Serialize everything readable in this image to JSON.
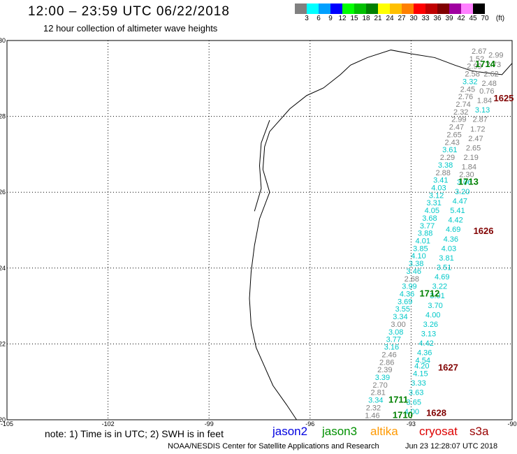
{
  "header": {
    "title": "12:00 – 23:59 UTC 06/22/2018",
    "subtitle": "12 hour collection of altimeter wave heights"
  },
  "color_scale": {
    "unit_label": "(ft)",
    "labels": [
      "3",
      "6",
      "9",
      "12",
      "15",
      "18",
      "21",
      "24",
      "27",
      "30",
      "33",
      "36",
      "39",
      "42",
      "45",
      "70"
    ],
    "colors": [
      "#808080",
      "#00ffff",
      "#00a0ff",
      "#0000ff",
      "#00ff00",
      "#00c000",
      "#008000",
      "#ffff00",
      "#ffc000",
      "#ff8000",
      "#ff0000",
      "#c00000",
      "#800000",
      "#a000a0",
      "#ff80ff",
      "#000000"
    ]
  },
  "map": {
    "lon_ticks": [
      "-105",
      "-102",
      "-99",
      "-96",
      "-93",
      "-90"
    ],
    "lat_ticks": [
      "30",
      "28",
      "26",
      "24",
      "22",
      "20"
    ],
    "lon_range": [
      -105,
      -90
    ],
    "lat_range": [
      20,
      30
    ],
    "track_colors": {
      "low": "#808080",
      "mid": "#00c8c8",
      "pass_green": "#008000",
      "pass_red": "#800000"
    },
    "tracks": [
      {
        "points": [
          {
            "lon": -94.15,
            "lat": 20.05,
            "v": "1.46",
            "c": "low"
          },
          {
            "lon": -94.12,
            "lat": 20.25,
            "v": "2.32",
            "c": "low"
          },
          {
            "lon": -94.05,
            "lat": 20.45,
            "v": "3.34",
            "c": "mid"
          },
          {
            "lon": -93.98,
            "lat": 20.65,
            "v": "2.81",
            "c": "low"
          },
          {
            "lon": -93.92,
            "lat": 20.85,
            "v": "2.70",
            "c": "low"
          },
          {
            "lon": -93.85,
            "lat": 21.05,
            "v": "3.39",
            "c": "mid"
          },
          {
            "lon": -93.78,
            "lat": 21.25,
            "v": "2.39",
            "c": "low"
          },
          {
            "lon": -93.72,
            "lat": 21.45,
            "v": "2.86",
            "c": "low"
          },
          {
            "lon": -93.65,
            "lat": 21.65,
            "v": "2.46",
            "c": "low"
          },
          {
            "lon": -93.58,
            "lat": 21.85,
            "v": "3.16",
            "c": "mid"
          },
          {
            "lon": -93.52,
            "lat": 22.05,
            "v": "3.77",
            "c": "mid"
          },
          {
            "lon": -93.45,
            "lat": 22.25,
            "v": "3.08",
            "c": "mid"
          },
          {
            "lon": -93.38,
            "lat": 22.45,
            "v": "3.00",
            "c": "low"
          },
          {
            "lon": -93.32,
            "lat": 22.65,
            "v": "3.34",
            "c": "mid"
          },
          {
            "lon": -93.25,
            "lat": 22.85,
            "v": "3.55",
            "c": "mid"
          },
          {
            "lon": -93.18,
            "lat": 23.05,
            "v": "3.69",
            "c": "mid"
          },
          {
            "lon": -93.12,
            "lat": 23.25,
            "v": "4.36",
            "c": "mid"
          },
          {
            "lon": -93.05,
            "lat": 23.45,
            "v": "3.99",
            "c": "mid"
          },
          {
            "lon": -92.98,
            "lat": 23.65,
            "v": "2.68",
            "c": "low"
          },
          {
            "lon": -92.92,
            "lat": 23.85,
            "v": "3.46",
            "c": "mid"
          },
          {
            "lon": -92.85,
            "lat": 24.05,
            "v": "3.38",
            "c": "mid"
          },
          {
            "lon": -92.78,
            "lat": 24.25,
            "v": "4.10",
            "c": "mid"
          },
          {
            "lon": -92.72,
            "lat": 24.45,
            "v": "3.85",
            "c": "mid"
          },
          {
            "lon": -92.65,
            "lat": 24.65,
            "v": "4.01",
            "c": "mid"
          },
          {
            "lon": -92.58,
            "lat": 24.85,
            "v": "3.88",
            "c": "mid"
          },
          {
            "lon": -92.52,
            "lat": 25.05,
            "v": "3.77",
            "c": "mid"
          },
          {
            "lon": -92.45,
            "lat": 25.25,
            "v": "3.68",
            "c": "mid"
          },
          {
            "lon": -92.38,
            "lat": 25.45,
            "v": "4.05",
            "c": "mid"
          },
          {
            "lon": -92.32,
            "lat": 25.65,
            "v": "3.31",
            "c": "mid"
          },
          {
            "lon": -92.25,
            "lat": 25.85,
            "v": "3.12",
            "c": "mid"
          },
          {
            "lon": -92.18,
            "lat": 26.05,
            "v": "4.03",
            "c": "mid"
          },
          {
            "lon": -92.12,
            "lat": 26.25,
            "v": "3.41",
            "c": "mid"
          },
          {
            "lon": -92.05,
            "lat": 26.45,
            "v": "2.88",
            "c": "low"
          },
          {
            "lon": -91.98,
            "lat": 26.65,
            "v": "3.38",
            "c": "mid"
          },
          {
            "lon": -91.92,
            "lat": 26.85,
            "v": "2.29",
            "c": "low"
          },
          {
            "lon": -91.85,
            "lat": 27.05,
            "v": "3.61",
            "c": "mid"
          },
          {
            "lon": -91.78,
            "lat": 27.25,
            "v": "2.43",
            "c": "low"
          },
          {
            "lon": -91.72,
            "lat": 27.45,
            "v": "2.65",
            "c": "low"
          },
          {
            "lon": -91.65,
            "lat": 27.65,
            "v": "2.47",
            "c": "low"
          },
          {
            "lon": -91.58,
            "lat": 27.85,
            "v": "2.99",
            "c": "low"
          },
          {
            "lon": -91.52,
            "lat": 28.05,
            "v": "2.32",
            "c": "low"
          },
          {
            "lon": -91.45,
            "lat": 28.25,
            "v": "2.74",
            "c": "low"
          },
          {
            "lon": -91.38,
            "lat": 28.45,
            "v": "2.76",
            "c": "low"
          },
          {
            "lon": -91.32,
            "lat": 28.65,
            "v": "2.45",
            "c": "low"
          },
          {
            "lon": -91.25,
            "lat": 28.85,
            "v": "3.32",
            "c": "mid"
          },
          {
            "lon": -91.18,
            "lat": 29.05,
            "v": "2.58",
            "c": "low"
          },
          {
            "lon": -91.12,
            "lat": 29.25,
            "v": "2.99",
            "c": "low"
          },
          {
            "lon": -91.05,
            "lat": 29.45,
            "v": "1.52",
            "c": "low"
          },
          {
            "lon": -90.98,
            "lat": 29.65,
            "v": "2.67",
            "c": "low"
          }
        ]
      },
      {
        "points": [
          {
            "lon": -92.98,
            "lat": 20.15,
            "v": "4.00",
            "c": "mid"
          },
          {
            "lon": -92.92,
            "lat": 20.4,
            "v": "3.65",
            "c": "mid"
          },
          {
            "lon": -92.85,
            "lat": 20.65,
            "v": "3.63",
            "c": "mid"
          },
          {
            "lon": -92.78,
            "lat": 20.9,
            "v": "3.33",
            "c": "mid"
          },
          {
            "lon": -92.72,
            "lat": 21.15,
            "v": "4.15",
            "c": "mid"
          },
          {
            "lon": -92.68,
            "lat": 21.35,
            "v": "4.20",
            "c": "mid"
          },
          {
            "lon": -92.65,
            "lat": 21.5,
            "v": "4.54",
            "c": "mid"
          },
          {
            "lon": -92.6,
            "lat": 21.7,
            "v": "4.36",
            "c": "mid"
          },
          {
            "lon": -92.55,
            "lat": 21.95,
            "v": "4.42",
            "c": "mid"
          },
          {
            "lon": -92.48,
            "lat": 22.2,
            "v": "3.13",
            "c": "mid"
          },
          {
            "lon": -92.42,
            "lat": 22.45,
            "v": "3.26",
            "c": "mid"
          },
          {
            "lon": -92.35,
            "lat": 22.7,
            "v": "4.00",
            "c": "mid"
          },
          {
            "lon": -92.28,
            "lat": 22.95,
            "v": "3.70",
            "c": "mid"
          },
          {
            "lon": -92.22,
            "lat": 23.2,
            "v": "3.01",
            "c": "mid"
          },
          {
            "lon": -92.15,
            "lat": 23.45,
            "v": "3.22",
            "c": "mid"
          },
          {
            "lon": -92.08,
            "lat": 23.7,
            "v": "4.69",
            "c": "mid"
          },
          {
            "lon": -92.02,
            "lat": 23.95,
            "v": "3.51",
            "c": "mid"
          },
          {
            "lon": -91.95,
            "lat": 24.2,
            "v": "3.81",
            "c": "mid"
          },
          {
            "lon": -91.88,
            "lat": 24.45,
            "v": "4.03",
            "c": "mid"
          },
          {
            "lon": -91.82,
            "lat": 24.7,
            "v": "4.36",
            "c": "mid"
          },
          {
            "lon": -91.75,
            "lat": 24.95,
            "v": "4.69",
            "c": "mid"
          },
          {
            "lon": -91.68,
            "lat": 25.2,
            "v": "4.42",
            "c": "mid"
          },
          {
            "lon": -91.62,
            "lat": 25.45,
            "v": "5.41",
            "c": "mid"
          },
          {
            "lon": -91.55,
            "lat": 25.7,
            "v": "4.47",
            "c": "mid"
          },
          {
            "lon": -91.48,
            "lat": 25.95,
            "v": "3.20",
            "c": "mid"
          },
          {
            "lon": -91.42,
            "lat": 26.2,
            "v": "3.06",
            "c": "mid"
          },
          {
            "lon": -91.35,
            "lat": 26.4,
            "v": "2.30",
            "c": "low"
          },
          {
            "lon": -91.28,
            "lat": 26.6,
            "v": "1.84",
            "c": "low"
          },
          {
            "lon": -91.22,
            "lat": 26.85,
            "v": "2.19",
            "c": "low"
          },
          {
            "lon": -91.15,
            "lat": 27.1,
            "v": "2.65",
            "c": "low"
          },
          {
            "lon": -91.08,
            "lat": 27.35,
            "v": "2.47",
            "c": "low"
          },
          {
            "lon": -91.02,
            "lat": 27.6,
            "v": "1.72",
            "c": "low"
          },
          {
            "lon": -90.95,
            "lat": 27.85,
            "v": "2.87",
            "c": "low"
          },
          {
            "lon": -90.88,
            "lat": 28.1,
            "v": "3.13",
            "c": "mid"
          },
          {
            "lon": -90.82,
            "lat": 28.35,
            "v": "1.84",
            "c": "low"
          },
          {
            "lon": -90.75,
            "lat": 28.6,
            "v": "0.76",
            "c": "low"
          },
          {
            "lon": -90.68,
            "lat": 28.8,
            "v": "2.48",
            "c": "low"
          },
          {
            "lon": -90.62,
            "lat": 29.05,
            "v": "2.62",
            "c": "low"
          },
          {
            "lon": -90.55,
            "lat": 29.3,
            "v": "2.73",
            "c": "low"
          },
          {
            "lon": -90.48,
            "lat": 29.55,
            "v": "2.99",
            "c": "low"
          }
        ]
      }
    ],
    "passes": [
      {
        "lon": -93.25,
        "lat": 20.05,
        "label": "1710",
        "c": "pass_green"
      },
      {
        "lon": -93.38,
        "lat": 20.45,
        "label": "1711",
        "c": "pass_green"
      },
      {
        "lon": -92.45,
        "lat": 23.25,
        "label": "1712",
        "c": "pass_green"
      },
      {
        "lon": -91.3,
        "lat": 26.2,
        "label": "1713",
        "c": "pass_green"
      },
      {
        "lon": -90.8,
        "lat": 29.3,
        "label": "1714",
        "c": "pass_green"
      },
      {
        "lon": -92.25,
        "lat": 20.1,
        "label": "1628",
        "c": "pass_red"
      },
      {
        "lon": -91.9,
        "lat": 21.3,
        "label": "1627",
        "c": "pass_red"
      },
      {
        "lon": -90.85,
        "lat": 24.9,
        "label": "1626",
        "c": "pass_red"
      },
      {
        "lon": -90.25,
        "lat": 28.4,
        "label": "1625",
        "c": "pass_red"
      }
    ]
  },
  "footer": {
    "note": "note: 1) Time is in UTC; 2) SWH is in feet",
    "satellites": [
      {
        "name": "jason2",
        "color": "#0000e0"
      },
      {
        "name": "jason3",
        "color": "#009000"
      },
      {
        "name": "altika",
        "color": "#ff9900"
      },
      {
        "name": "cryosat",
        "color": "#dd0000"
      },
      {
        "name": "s3a",
        "color": "#990000"
      }
    ],
    "credit": "NOAA/NESDIS Center for Satellite Applications and Research",
    "timestamp": "Jun 23 12:28:07 UTC 2018"
  }
}
